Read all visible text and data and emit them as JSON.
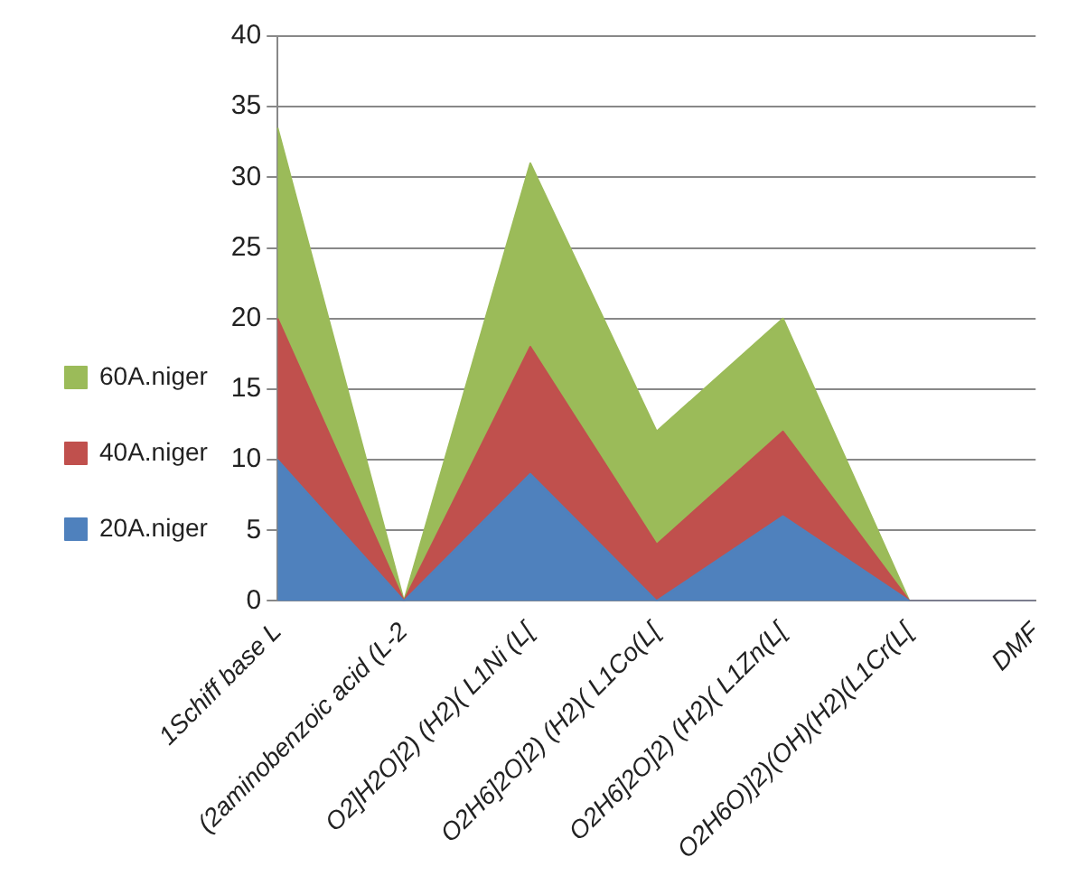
{
  "chart_data": {
    "type": "area",
    "stacked": true,
    "categories": [
      "1Schiff base L",
      "(2aminobenzoic acid (L-2",
      "O2]H2O]2) (H2)( L1Ni (L[",
      "O2H6]2O]2) (H2)( L1Co(L[",
      "O2H6]2O]2) (H2)( L1Zn(L[",
      "O2H6O)]2)(OH)(H2)(L1Cr(L[",
      "DMF"
    ],
    "series": [
      {
        "name": "20A.niger",
        "color": "#4f81bd",
        "values": [
          10,
          0,
          9,
          0,
          6,
          0,
          0
        ]
      },
      {
        "name": "40A.niger",
        "color": "#c0504d",
        "values": [
          10,
          0,
          9,
          4,
          6,
          0,
          0
        ]
      },
      {
        "name": "60A.niger",
        "color": "#9bbb59",
        "values": [
          13.5,
          0,
          13,
          8,
          8,
          0,
          0
        ]
      }
    ],
    "ylim": [
      0,
      40
    ],
    "yticks": [
      0,
      5,
      10,
      15,
      20,
      25,
      30,
      35,
      40
    ],
    "grid": "y",
    "legend": "left"
  }
}
